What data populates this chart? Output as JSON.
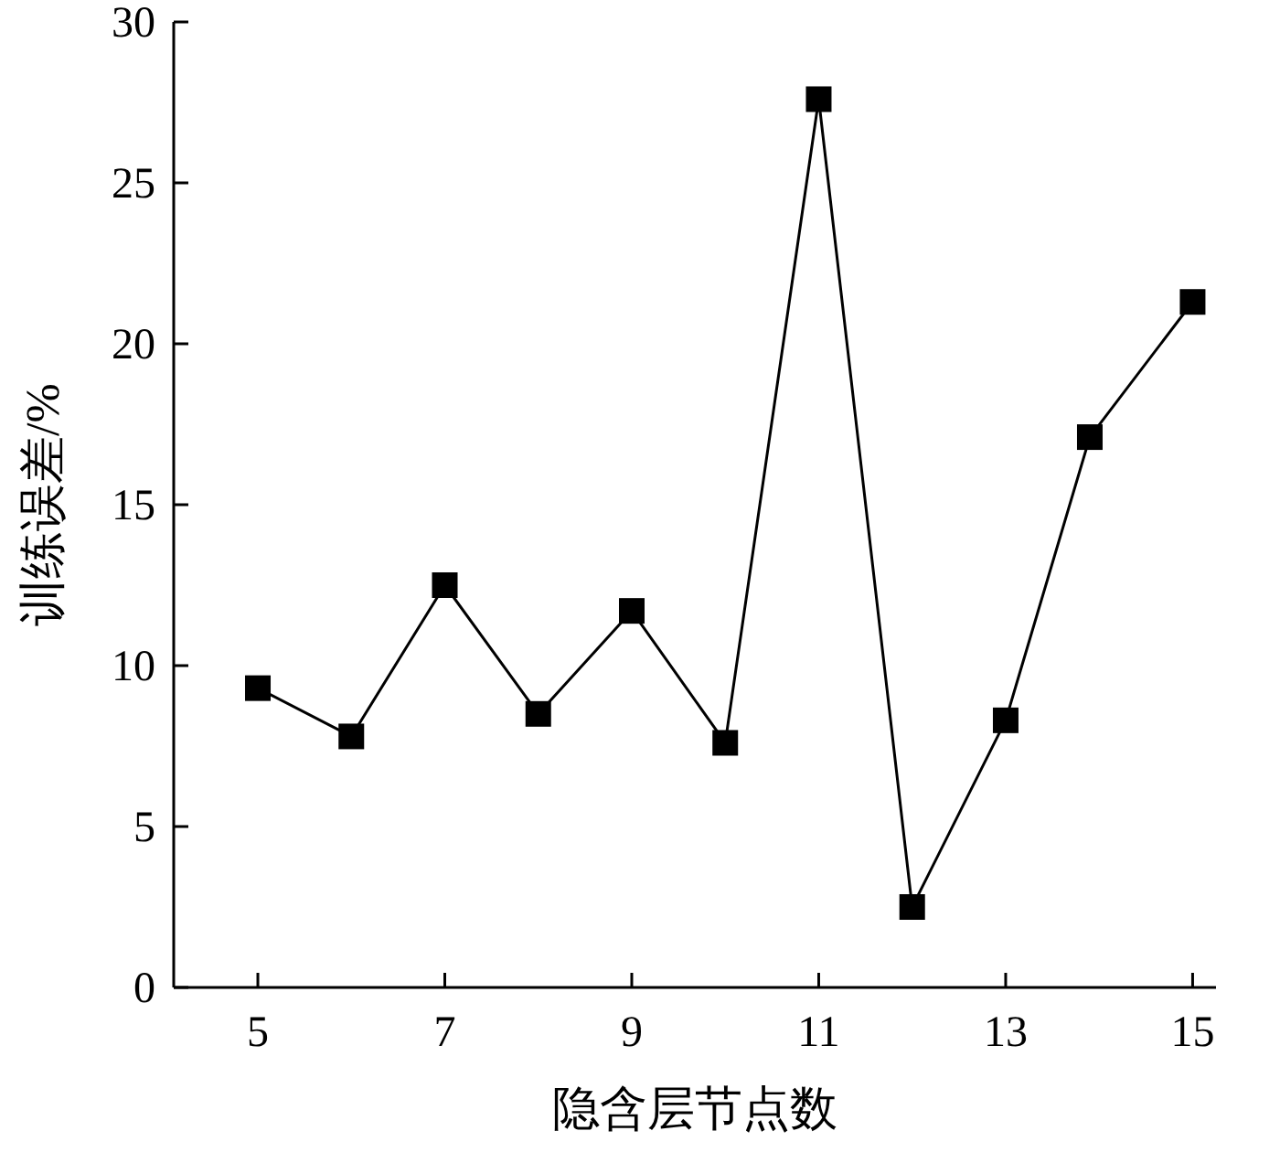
{
  "chart_data": {
    "type": "line",
    "xlabel": "隐含层节点数",
    "ylabel": "训练误差/%",
    "x": [
      5,
      6,
      7,
      8,
      9,
      10,
      11,
      12,
      13,
      13.9,
      15
    ],
    "series": [
      {
        "color": "#000000",
        "values": [
          9.3,
          7.8,
          12.5,
          8.5,
          11.7,
          7.6,
          27.6,
          2.5,
          8.3,
          17.1,
          21.3
        ]
      }
    ],
    "xlim": [
      4.1,
      15.25
    ],
    "ylim": [
      0,
      30
    ],
    "xticks": [
      5,
      7,
      9,
      11,
      13,
      15
    ],
    "yticks": [
      0,
      5,
      10,
      15,
      20,
      25,
      30
    ],
    "marker": "square",
    "line_style": "solid",
    "grid": false
  }
}
